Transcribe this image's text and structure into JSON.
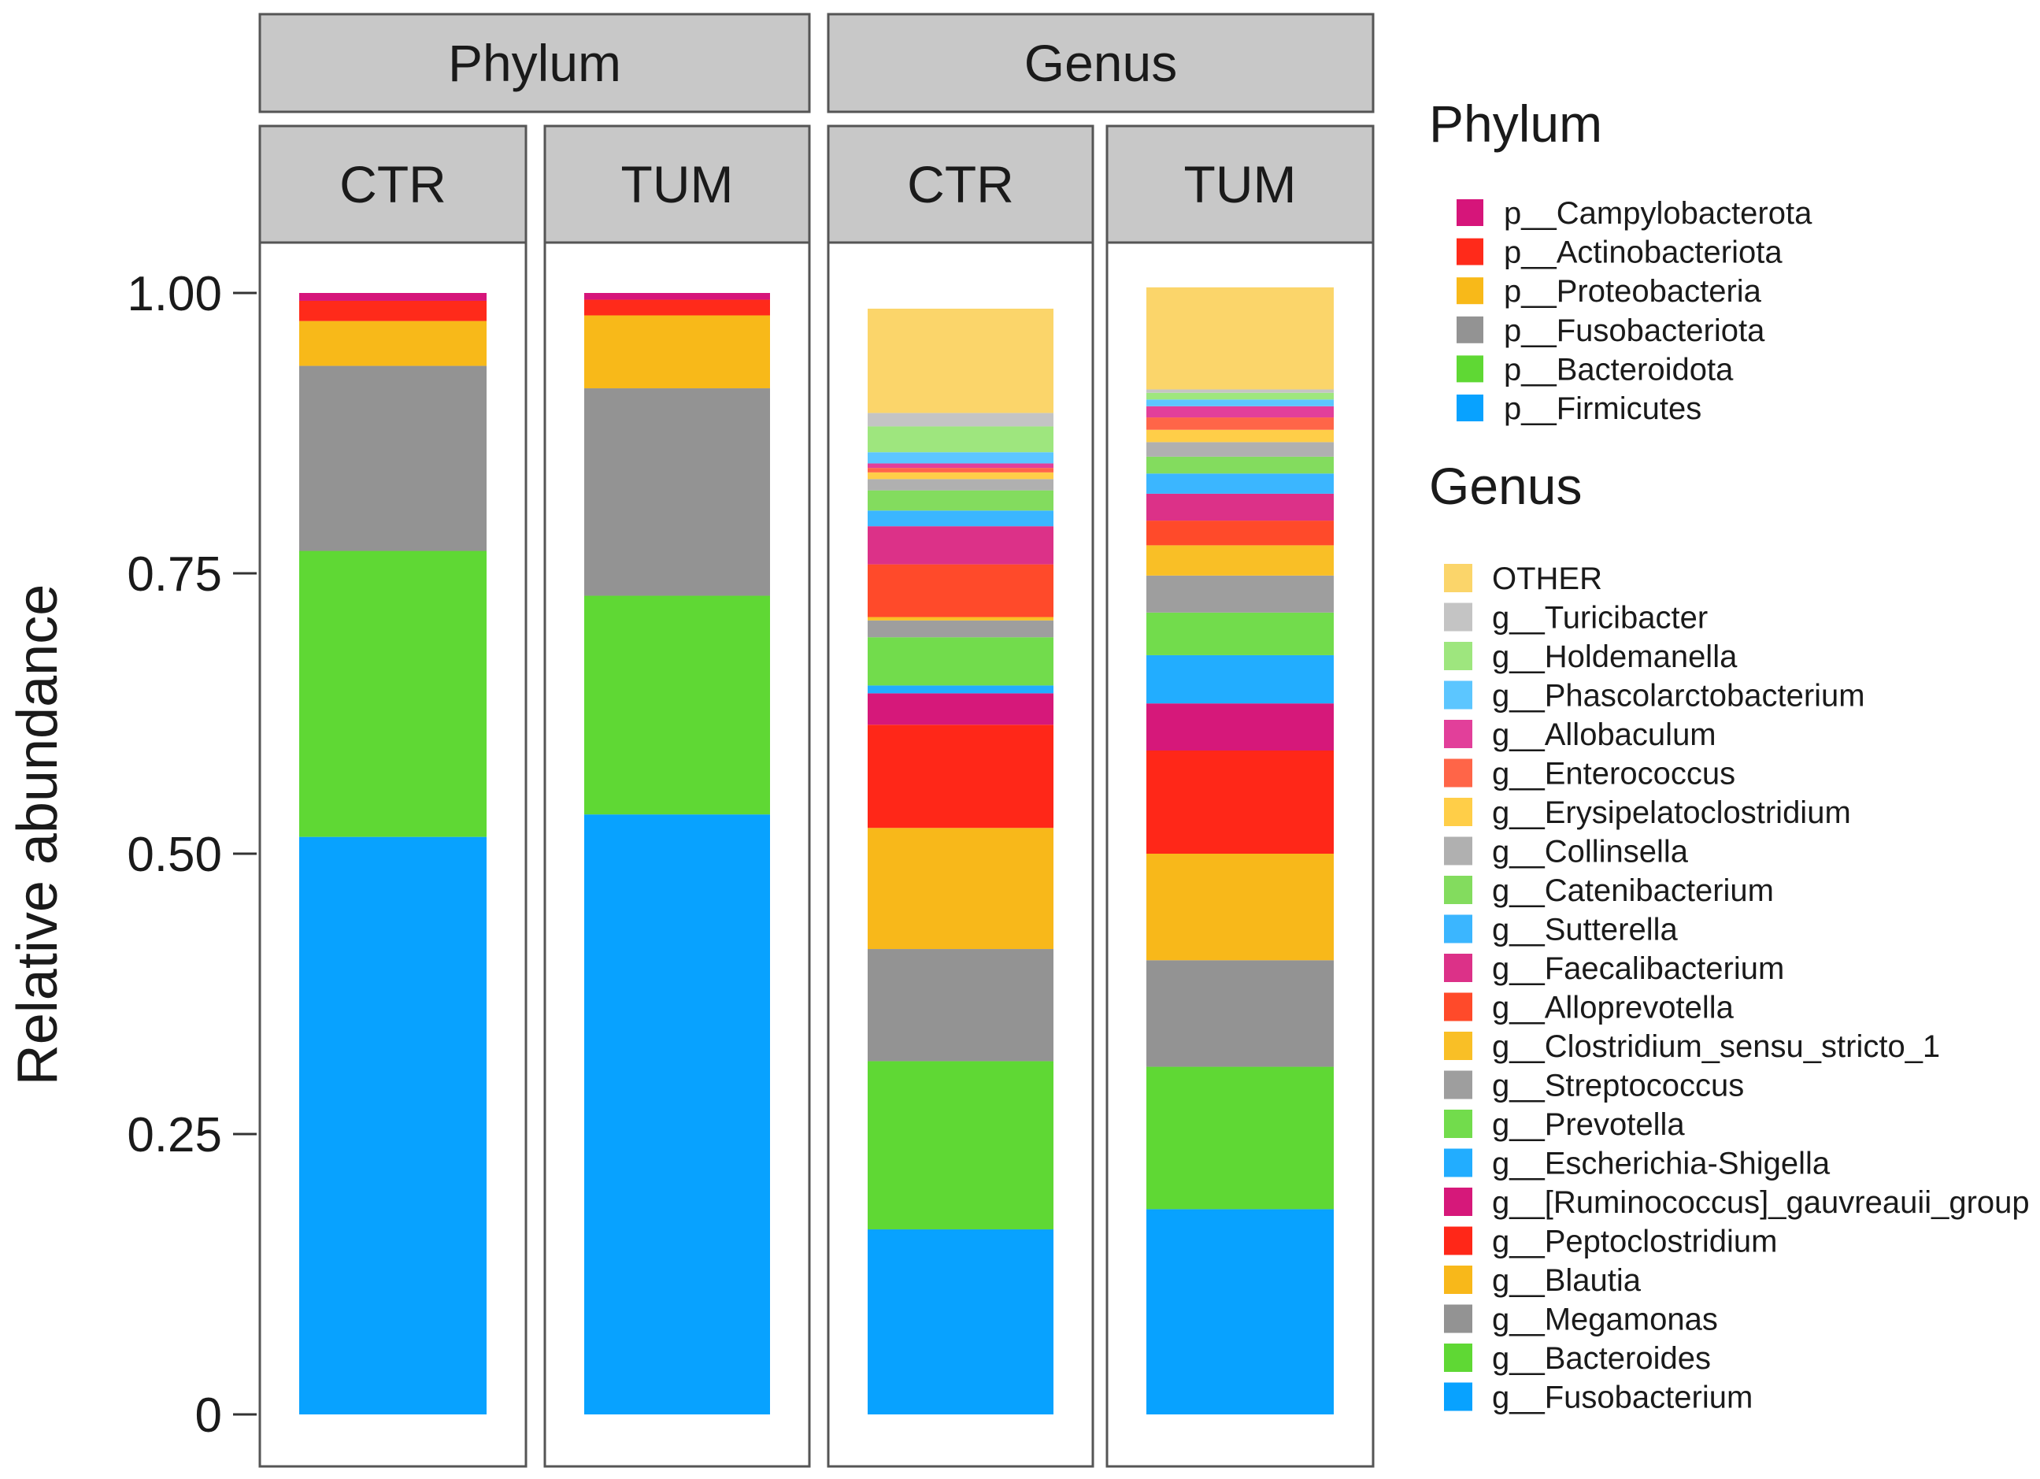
{
  "chart_data": {
    "type": "bar",
    "stacked": true,
    "ylabel": "Relative abundance",
    "xlabel": "",
    "ylim": [
      0,
      1
    ],
    "yticks": [
      "0",
      "0.25",
      "0.50",
      "0.75",
      "1.00"
    ],
    "ytick_values": [
      0,
      0.25,
      0.5,
      0.75,
      1.0
    ],
    "facets": [
      {
        "level": "Phylum",
        "legend_key": "phylum",
        "panels": [
          {
            "group": "CTR",
            "segments": [
              {
                "name": "p__Firmicutes",
                "value": 0.515
              },
              {
                "name": "p__Bacteroidota",
                "value": 0.255
              },
              {
                "name": "p__Fusobacteriota",
                "value": 0.165
              },
              {
                "name": "p__Proteobacteria",
                "value": 0.04
              },
              {
                "name": "p__Actinobacteriota",
                "value": 0.018
              },
              {
                "name": "p__Campylobacterota",
                "value": 0.007
              }
            ]
          },
          {
            "group": "TUM",
            "segments": [
              {
                "name": "p__Firmicutes",
                "value": 0.535
              },
              {
                "name": "p__Bacteroidota",
                "value": 0.195
              },
              {
                "name": "p__Fusobacteriota",
                "value": 0.185
              },
              {
                "name": "p__Proteobacteria",
                "value": 0.065
              },
              {
                "name": "p__Actinobacteriota",
                "value": 0.014
              },
              {
                "name": "p__Campylobacterota",
                "value": 0.006
              }
            ]
          }
        ]
      },
      {
        "level": "Genus",
        "legend_key": "genus",
        "panels": [
          {
            "group": "CTR",
            "segments": [
              {
                "name": "g__Fusobacterium",
                "value": 0.165
              },
              {
                "name": "g__Bacteroides",
                "value": 0.15
              },
              {
                "name": "g__Megamonas",
                "value": 0.1
              },
              {
                "name": "g__Blautia",
                "value": 0.108
              },
              {
                "name": "g__Peptoclostridium",
                "value": 0.092
              },
              {
                "name": "g__[Ruminococcus]_gauvreauii_group",
                "value": 0.028
              },
              {
                "name": "g__Escherichia-Shigella",
                "value": 0.007
              },
              {
                "name": "g__Prevotella",
                "value": 0.043
              },
              {
                "name": "g__Streptococcus",
                "value": 0.015
              },
              {
                "name": "g__Clostridium_sensu_stricto_1",
                "value": 0.003
              },
              {
                "name": "g__Alloprevotella",
                "value": 0.047
              },
              {
                "name": "g__Faecalibacterium",
                "value": 0.034
              },
              {
                "name": "g__Sutterella",
                "value": 0.014
              },
              {
                "name": "g__Catenibacterium",
                "value": 0.018
              },
              {
                "name": "g__Collinsella",
                "value": 0.01
              },
              {
                "name": "g__Erysipelatoclostridium",
                "value": 0.006
              },
              {
                "name": "g__Enterococcus",
                "value": 0.004
              },
              {
                "name": "g__Allobaculum",
                "value": 0.004
              },
              {
                "name": "g__Phascolarctobacterium",
                "value": 0.01
              },
              {
                "name": "g__Holdemanella",
                "value": 0.023
              },
              {
                "name": "g__Turicibacter",
                "value": 0.012
              },
              {
                "name": "OTHER",
                "value": 0.093
              }
            ]
          },
          {
            "group": "TUM",
            "segments": [
              {
                "name": "g__Fusobacterium",
                "value": 0.183
              },
              {
                "name": "g__Bacteroides",
                "value": 0.127
              },
              {
                "name": "g__Megamonas",
                "value": 0.095
              },
              {
                "name": "g__Blautia",
                "value": 0.095
              },
              {
                "name": "g__Peptoclostridium",
                "value": 0.092
              },
              {
                "name": "g__[Ruminococcus]_gauvreauii_group",
                "value": 0.042
              },
              {
                "name": "g__Escherichia-Shigella",
                "value": 0.043
              },
              {
                "name": "g__Prevotella",
                "value": 0.038
              },
              {
                "name": "g__Streptococcus",
                "value": 0.033
              },
              {
                "name": "g__Clostridium_sensu_stricto_1",
                "value": 0.027
              },
              {
                "name": "g__Alloprevotella",
                "value": 0.022
              },
              {
                "name": "g__Faecalibacterium",
                "value": 0.024
              },
              {
                "name": "g__Sutterella",
                "value": 0.018
              },
              {
                "name": "g__Catenibacterium",
                "value": 0.015
              },
              {
                "name": "g__Collinsella",
                "value": 0.013
              },
              {
                "name": "g__Erysipelatoclostridium",
                "value": 0.011
              },
              {
                "name": "g__Enterococcus",
                "value": 0.011
              },
              {
                "name": "g__Allobaculum",
                "value": 0.01
              },
              {
                "name": "g__Phascolarctobacterium",
                "value": 0.006
              },
              {
                "name": "g__Holdemanella",
                "value": 0.006
              },
              {
                "name": "g__Turicibacter",
                "value": 0.003
              },
              {
                "name": "OTHER",
                "value": 0.091
              }
            ]
          }
        ]
      }
    ],
    "legends": [
      {
        "key": "phylum",
        "title": "Phylum",
        "items": [
          {
            "label": "p__Campylobacterota",
            "color": "#d6157a"
          },
          {
            "label": "p__Actinobacteriota",
            "color": "#ff2a1a"
          },
          {
            "label": "p__Proteobacteria",
            "color": "#f8b919"
          },
          {
            "label": "p__Fusobacteriota",
            "color": "#939393"
          },
          {
            "label": "p__Bacteroidota",
            "color": "#5fd834"
          },
          {
            "label": "p__Firmicutes",
            "color": "#08a2ff"
          }
        ]
      },
      {
        "key": "genus",
        "title": "Genus",
        "items": [
          {
            "label": "OTHER",
            "color": "#fbd56a"
          },
          {
            "label": "g__Turicibacter",
            "color": "#c4c4c4"
          },
          {
            "label": "g__Holdemanella",
            "color": "#9ee67e"
          },
          {
            "label": "g__Phascolarctobacterium",
            "color": "#5cc6ff"
          },
          {
            "label": "g__Allobaculum",
            "color": "#e23f9a"
          },
          {
            "label": "g__Enterococcus",
            "color": "#ff6548"
          },
          {
            "label": "g__Erysipelatoclostridium",
            "color": "#ffce48"
          },
          {
            "label": "g__Collinsella",
            "color": "#b0b0b0"
          },
          {
            "label": "g__Catenibacterium",
            "color": "#83dc5e"
          },
          {
            "label": "g__Sutterella",
            "color": "#3bb6ff"
          },
          {
            "label": "g__Faecalibacterium",
            "color": "#dc3188"
          },
          {
            "label": "g__Alloprevotella",
            "color": "#ff4a2a"
          },
          {
            "label": "g__Clostridium_sensu_stricto_1",
            "color": "#f9bf26"
          },
          {
            "label": "g__Streptococcus",
            "color": "#9e9e9e"
          },
          {
            "label": "g__Prevotella",
            "color": "#72dc4c"
          },
          {
            "label": "g__Escherichia-Shigella",
            "color": "#22adff"
          },
          {
            "label": "g__[Ruminococcus]_gauvreauii_group",
            "color": "#d6187a"
          },
          {
            "label": "g__Peptoclostridium",
            "color": "#ff2718"
          },
          {
            "label": "g__Blautia",
            "color": "#f8b81a"
          },
          {
            "label": "g__Megamonas",
            "color": "#939393"
          },
          {
            "label": "g__Bacteroides",
            "color": "#5fd834"
          },
          {
            "label": "g__Fusobacterium",
            "color": "#08a2ff"
          }
        ]
      }
    ]
  }
}
